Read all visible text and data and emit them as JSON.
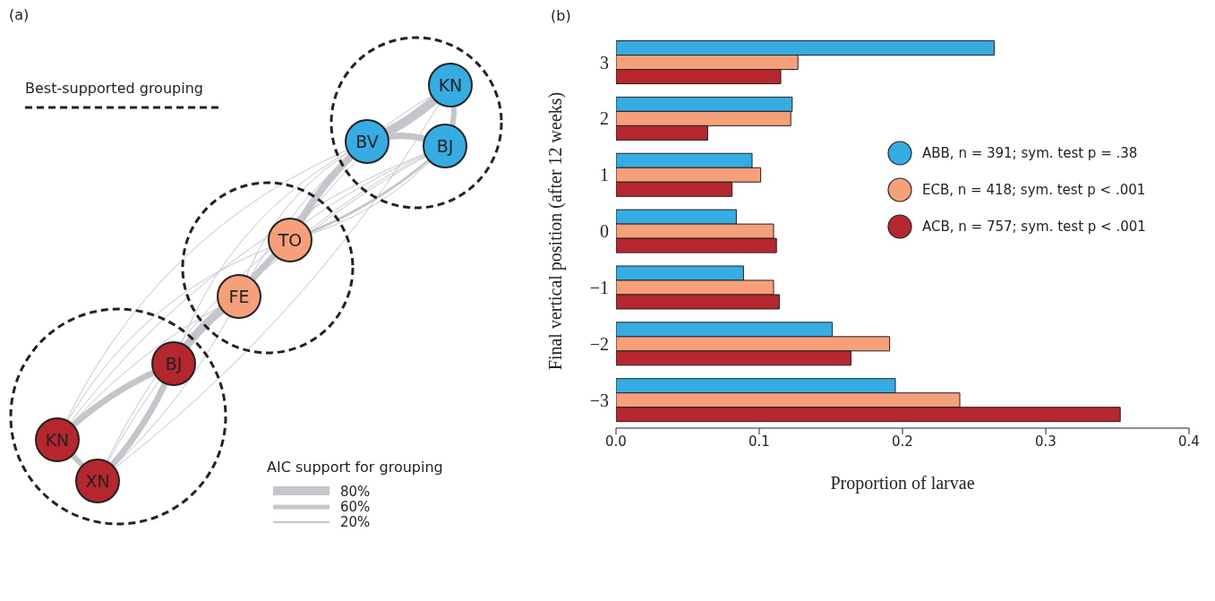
{
  "chart_data": [
    {
      "type": "other",
      "title": "(a)",
      "annotations": [
        "Best-supported grouping",
        "AIC support for grouping",
        "80%",
        "60%",
        "20%",
        "KN",
        "BV",
        "BJ",
        "TO",
        "FE",
        "BJ",
        "KN",
        "XN"
      ]
    },
    {
      "type": "bar",
      "title": "(b)",
      "orientation": "horizontal",
      "categories": [
        "3",
        "2",
        "1",
        "0",
        "−1",
        "−2",
        "−3"
      ],
      "xlabel": "Proportion of larvae",
      "ylabel": "Final vertical position (after 12 weeks)",
      "xlim": [
        0,
        0.4
      ],
      "xticks": [
        {
          "value": 0,
          "label": "0.0"
        },
        0.1,
        0.2,
        0.3,
        0.4
      ],
      "legend": "top right",
      "grid": false,
      "series": [
        {
          "name": "ABB, n = 391; sym. test p = .38",
          "color": "#35ade2",
          "values": [
            0.264,
            0.123,
            0.095,
            0.084,
            0.089,
            0.151,
            0.195
          ]
        },
        {
          "name": "ECB, n = 418; sym. test p < .001",
          "color": "#f5a07a",
          "values": [
            0.127,
            0.122,
            0.101,
            0.11,
            0.11,
            0.191,
            0.24
          ]
        },
        {
          "name": "ACB, n = 757; sym. test p < .001",
          "color": "#b5262f",
          "values": [
            0.115,
            0.064,
            0.081,
            0.112,
            0.114,
            0.164,
            0.352
          ]
        }
      ]
    }
  ]
}
